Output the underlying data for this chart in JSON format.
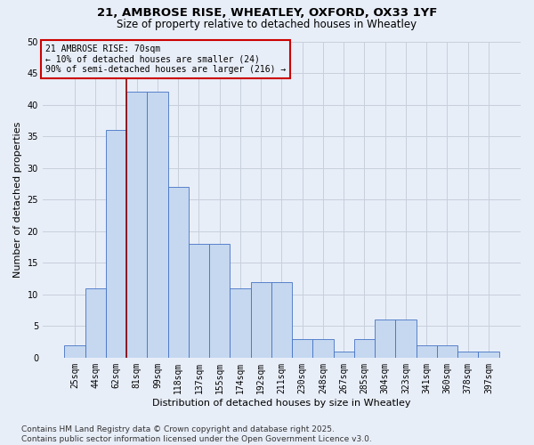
{
  "title_line1": "21, AMBROSE RISE, WHEATLEY, OXFORD, OX33 1YF",
  "title_line2": "Size of property relative to detached houses in Wheatley",
  "xlabel": "Distribution of detached houses by size in Wheatley",
  "ylabel": "Number of detached properties",
  "bar_labels": [
    "25sqm",
    "44sqm",
    "62sqm",
    "81sqm",
    "99sqm",
    "118sqm",
    "137sqm",
    "155sqm",
    "174sqm",
    "192sqm",
    "211sqm",
    "230sqm",
    "248sqm",
    "267sqm",
    "285sqm",
    "304sqm",
    "323sqm",
    "341sqm",
    "360sqm",
    "378sqm",
    "397sqm"
  ],
  "bar_values": [
    2,
    11,
    36,
    42,
    42,
    27,
    18,
    18,
    11,
    12,
    12,
    3,
    3,
    1,
    3,
    6,
    6,
    2,
    2,
    1,
    1
  ],
  "bar_color": "#c5d8f0",
  "bar_edge_color": "#4472c4",
  "grid_color": "#c8d0dc",
  "vline_x": 2.5,
  "vline_color": "#8b0000",
  "annotation_text": "21 AMBROSE RISE: 70sqm\n← 10% of detached houses are smaller (24)\n90% of semi-detached houses are larger (216) →",
  "annotation_box_color": "#cc0000",
  "ylim": [
    0,
    50
  ],
  "yticks": [
    0,
    5,
    10,
    15,
    20,
    25,
    30,
    35,
    40,
    45,
    50
  ],
  "footer_line1": "Contains HM Land Registry data © Crown copyright and database right 2025.",
  "footer_line2": "Contains public sector information licensed under the Open Government Licence v3.0.",
  "bg_color": "#e8eef8",
  "title_fontsize": 9.5,
  "subtitle_fontsize": 8.5,
  "axis_label_fontsize": 8,
  "tick_fontsize": 7,
  "annot_fontsize": 7,
  "footer_fontsize": 6.5
}
